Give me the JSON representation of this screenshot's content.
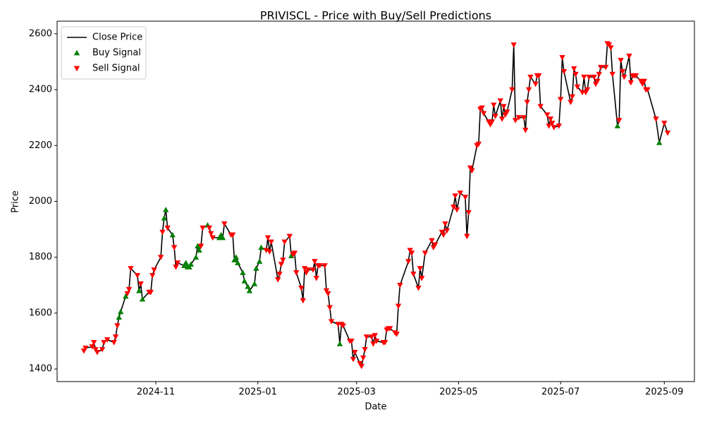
{
  "chart_data": {
    "type": "line",
    "title": "PRIVISCL - Price with Buy/Sell Predictions",
    "x_label": "Date",
    "y_label": "Price",
    "xlim": [
      "2024-09-03",
      "2025-09-19"
    ],
    "xticks": [
      {
        "value": "2024-11-01",
        "label": "2024-11"
      },
      {
        "value": "2025-01-01",
        "label": "2025-01"
      },
      {
        "value": "2025-03-01",
        "label": "2025-03"
      },
      {
        "value": "2025-05-01",
        "label": "2025-05"
      },
      {
        "value": "2025-07-01",
        "label": "2025-07"
      },
      {
        "value": "2025-09-01",
        "label": "2025-09"
      }
    ],
    "ylim": [
      1355,
      2645
    ],
    "yticks": [
      1400,
      1600,
      1800,
      2000,
      2200,
      2400,
      2600
    ],
    "grid": false,
    "legend": "upper left",
    "series": [
      {
        "name": "Close Price",
        "type": "line",
        "color": "#000000",
        "x": [
          "2024-09-19",
          "2024-09-20",
          "2024-09-24",
          "2024-09-25",
          "2024-09-26",
          "2024-09-27",
          "2024-09-30",
          "2024-10-01",
          "2024-10-03",
          "2024-10-07",
          "2024-10-08",
          "2024-10-09",
          "2024-10-10",
          "2024-10-11",
          "2024-10-14",
          "2024-10-15",
          "2024-10-16",
          "2024-10-17",
          "2024-10-21",
          "2024-10-22",
          "2024-10-23",
          "2024-10-24",
          "2024-10-28",
          "2024-10-29",
          "2024-10-30",
          "2024-10-31",
          "2024-11-04",
          "2024-11-05",
          "2024-11-06",
          "2024-11-07",
          "2024-11-08",
          "2024-11-11",
          "2024-11-12",
          "2024-11-13",
          "2024-11-14",
          "2024-11-18",
          "2024-11-19",
          "2024-11-20",
          "2024-11-21",
          "2024-11-22",
          "2024-11-25",
          "2024-11-26",
          "2024-11-27",
          "2024-11-28",
          "2024-11-29",
          "2024-12-02",
          "2024-12-03",
          "2024-12-04",
          "2024-12-05",
          "2024-12-09",
          "2024-12-10",
          "2024-12-11",
          "2024-12-12",
          "2024-12-16",
          "2024-12-17",
          "2024-12-18",
          "2024-12-19",
          "2024-12-20",
          "2024-12-23",
          "2024-12-24",
          "2024-12-26",
          "2024-12-27",
          "2024-12-30",
          "2024-12-31",
          "2025-01-02",
          "2025-01-03",
          "2025-01-06",
          "2025-01-07",
          "2025-01-08",
          "2025-01-09",
          "2025-01-13",
          "2025-01-14",
          "2025-01-15",
          "2025-01-16",
          "2025-01-17",
          "2025-01-20",
          "2025-01-21",
          "2025-01-22",
          "2025-01-23",
          "2025-01-24",
          "2025-01-27",
          "2025-01-28",
          "2025-01-29",
          "2025-01-30",
          "2025-01-31",
          "2025-02-03",
          "2025-02-04",
          "2025-02-05",
          "2025-02-06",
          "2025-02-07",
          "2025-02-10",
          "2025-02-11",
          "2025-02-12",
          "2025-02-13",
          "2025-02-14",
          "2025-02-18",
          "2025-02-19",
          "2025-02-20",
          "2025-02-21",
          "2025-02-25",
          "2025-02-26",
          "2025-02-27",
          "2025-02-28",
          "2025-03-03",
          "2025-03-04",
          "2025-03-05",
          "2025-03-06",
          "2025-03-07",
          "2025-03-10",
          "2025-03-11",
          "2025-03-12",
          "2025-03-13",
          "2025-03-17",
          "2025-03-18",
          "2025-03-19",
          "2025-03-20",
          "2025-03-21",
          "2025-03-24",
          "2025-03-25",
          "2025-03-26",
          "2025-03-27",
          "2025-04-01",
          "2025-04-02",
          "2025-04-03",
          "2025-04-04",
          "2025-04-07",
          "2025-04-08",
          "2025-04-09",
          "2025-04-11",
          "2025-04-15",
          "2025-04-16",
          "2025-04-17",
          "2025-04-21",
          "2025-04-22",
          "2025-04-23",
          "2025-04-24",
          "2025-04-28",
          "2025-04-29",
          "2025-04-30",
          "2025-05-02",
          "2025-05-05",
          "2025-05-06",
          "2025-05-07",
          "2025-05-08",
          "2025-05-09",
          "2025-05-12",
          "2025-05-13",
          "2025-05-14",
          "2025-05-15",
          "2025-05-16",
          "2025-05-19",
          "2025-05-20",
          "2025-05-21",
          "2025-05-22",
          "2025-05-23",
          "2025-05-26",
          "2025-05-27",
          "2025-05-28",
          "2025-05-29",
          "2025-05-30",
          "2025-06-02",
          "2025-06-03",
          "2025-06-04",
          "2025-06-06",
          "2025-06-09",
          "2025-06-10",
          "2025-06-11",
          "2025-06-12",
          "2025-06-13",
          "2025-06-16",
          "2025-06-17",
          "2025-06-18",
          "2025-06-19",
          "2025-06-23",
          "2025-06-24",
          "2025-06-25",
          "2025-06-26",
          "2025-06-27",
          "2025-06-30",
          "2025-07-01",
          "2025-07-02",
          "2025-07-03",
          "2025-07-07",
          "2025-07-08",
          "2025-07-09",
          "2025-07-10",
          "2025-07-11",
          "2025-07-14",
          "2025-07-15",
          "2025-07-16",
          "2025-07-17",
          "2025-07-18",
          "2025-07-21",
          "2025-07-22",
          "2025-07-23",
          "2025-07-24",
          "2025-07-25",
          "2025-07-28",
          "2025-07-29",
          "2025-07-30",
          "2025-07-31",
          "2025-08-01",
          "2025-08-04",
          "2025-08-05",
          "2025-08-06",
          "2025-08-07",
          "2025-08-08",
          "2025-08-11",
          "2025-08-12",
          "2025-08-13",
          "2025-08-14",
          "2025-08-15",
          "2025-08-18",
          "2025-08-19",
          "2025-08-20",
          "2025-08-21",
          "2025-08-22",
          "2025-08-27",
          "2025-08-29",
          "2025-09-01",
          "2025-09-03"
        ],
        "values": [
          1465,
          1475,
          1480,
          1495,
          1470,
          1460,
          1470,
          1495,
          1505,
          1495,
          1515,
          1555,
          1585,
          1605,
          1660,
          1670,
          1685,
          1760,
          1735,
          1680,
          1705,
          1650,
          1675,
          1675,
          1735,
          1755,
          1800,
          1890,
          1940,
          1970,
          1905,
          1880,
          1835,
          1765,
          1780,
          1770,
          1780,
          1765,
          1765,
          1775,
          1800,
          1840,
          1825,
          1840,
          1905,
          1915,
          1905,
          1885,
          1870,
          1870,
          1880,
          1870,
          1920,
          1880,
          1880,
          1790,
          1800,
          1780,
          1745,
          1715,
          1695,
          1680,
          1705,
          1760,
          1785,
          1835,
          1825,
          1870,
          1820,
          1855,
          1720,
          1740,
          1775,
          1790,
          1855,
          1875,
          1805,
          1810,
          1815,
          1745,
          1690,
          1645,
          1760,
          1745,
          1755,
          1755,
          1785,
          1725,
          1770,
          1770,
          1770,
          1680,
          1670,
          1620,
          1570,
          1560,
          1490,
          1560,
          1555,
          1500,
          1500,
          1435,
          1460,
          1420,
          1410,
          1440,
          1470,
          1515,
          1515,
          1490,
          1520,
          1500,
          1495,
          1495,
          1540,
          1545,
          1545,
          1530,
          1525,
          1625,
          1700,
          1785,
          1825,
          1815,
          1740,
          1690,
          1760,
          1725,
          1815,
          1860,
          1835,
          1845,
          1890,
          1880,
          1920,
          1895,
          1980,
          2020,
          1970,
          2030,
          2015,
          1875,
          1960,
          2120,
          2110,
          2200,
          2205,
          2330,
          2335,
          2315,
          2285,
          2275,
          2285,
          2345,
          2305,
          2360,
          2295,
          2340,
          2310,
          2320,
          2400,
          2560,
          2290,
          2300,
          2300,
          2255,
          2355,
          2400,
          2445,
          2420,
          2450,
          2450,
          2340,
          2310,
          2270,
          2295,
          2280,
          2265,
          2270,
          2365,
          2515,
          2465,
          2355,
          2375,
          2475,
          2455,
          2410,
          2390,
          2445,
          2390,
          2400,
          2445,
          2445,
          2420,
          2430,
          2455,
          2480,
          2480,
          2565,
          2560,
          2550,
          2455,
          2270,
          2290,
          2505,
          2465,
          2445,
          2520,
          2425,
          2450,
          2450,
          2450,
          2430,
          2420,
          2430,
          2400,
          2400,
          2295,
          2210,
          2280,
          2245
        ]
      },
      {
        "name": "Buy Signal",
        "type": "scatter",
        "marker": "^",
        "color": "#008000",
        "x": [
          "2024-10-10",
          "2024-10-11",
          "2024-10-14",
          "2024-10-22",
          "2024-10-24",
          "2024-11-06",
          "2024-11-07",
          "2024-11-11",
          "2024-11-18",
          "2024-11-19",
          "2024-11-20",
          "2024-11-21",
          "2024-11-22",
          "2024-11-25",
          "2024-11-26",
          "2024-11-27",
          "2024-12-02",
          "2024-12-09",
          "2024-12-10",
          "2024-12-11",
          "2024-12-18",
          "2024-12-19",
          "2024-12-20",
          "2024-12-23",
          "2024-12-24",
          "2024-12-26",
          "2024-12-27",
          "2024-12-30",
          "2024-12-31",
          "2025-01-02",
          "2025-01-03",
          "2025-01-21",
          "2025-02-19",
          "2025-08-04",
          "2025-08-29"
        ],
        "values": [
          1585,
          1605,
          1660,
          1680,
          1650,
          1940,
          1970,
          1880,
          1770,
          1780,
          1765,
          1765,
          1775,
          1800,
          1840,
          1825,
          1915,
          1870,
          1880,
          1870,
          1790,
          1800,
          1780,
          1745,
          1715,
          1695,
          1680,
          1705,
          1760,
          1785,
          1835,
          1805,
          1490,
          2270,
          2210
        ]
      },
      {
        "name": "Sell Signal",
        "type": "scatter",
        "marker": "v",
        "color": "#ff0000",
        "x": [
          "2024-09-19",
          "2024-09-20",
          "2024-09-24",
          "2024-09-25",
          "2024-09-26",
          "2024-09-27",
          "2024-09-30",
          "2024-10-01",
          "2024-10-03",
          "2024-10-07",
          "2024-10-08",
          "2024-10-09",
          "2024-10-15",
          "2024-10-16",
          "2024-10-17",
          "2024-10-21",
          "2024-10-23",
          "2024-10-28",
          "2024-10-29",
          "2024-10-30",
          "2024-10-31",
          "2024-11-04",
          "2024-11-05",
          "2024-11-08",
          "2024-11-12",
          "2024-11-13",
          "2024-11-14",
          "2024-11-28",
          "2024-11-29",
          "2024-12-03",
          "2024-12-04",
          "2024-12-05",
          "2024-12-12",
          "2024-12-16",
          "2024-12-17",
          "2025-01-06",
          "2025-01-07",
          "2025-01-08",
          "2025-01-09",
          "2025-01-13",
          "2025-01-14",
          "2025-01-15",
          "2025-01-16",
          "2025-01-17",
          "2025-01-20",
          "2025-01-22",
          "2025-01-23",
          "2025-01-24",
          "2025-01-27",
          "2025-01-28",
          "2025-01-29",
          "2025-01-30",
          "2025-01-31",
          "2025-02-03",
          "2025-02-04",
          "2025-02-05",
          "2025-02-06",
          "2025-02-07",
          "2025-02-10",
          "2025-02-11",
          "2025-02-12",
          "2025-02-13",
          "2025-02-14",
          "2025-02-18",
          "2025-02-20",
          "2025-02-21",
          "2025-02-25",
          "2025-02-26",
          "2025-02-27",
          "2025-02-28",
          "2025-03-03",
          "2025-03-04",
          "2025-03-05",
          "2025-03-06",
          "2025-03-07",
          "2025-03-10",
          "2025-03-11",
          "2025-03-12",
          "2025-03-13",
          "2025-03-17",
          "2025-03-18",
          "2025-03-19",
          "2025-03-20",
          "2025-03-21",
          "2025-03-24",
          "2025-03-25",
          "2025-03-26",
          "2025-03-27",
          "2025-04-01",
          "2025-04-02",
          "2025-04-03",
          "2025-04-04",
          "2025-04-07",
          "2025-04-08",
          "2025-04-09",
          "2025-04-11",
          "2025-04-15",
          "2025-04-16",
          "2025-04-17",
          "2025-04-21",
          "2025-04-22",
          "2025-04-23",
          "2025-04-24",
          "2025-04-28",
          "2025-04-29",
          "2025-04-30",
          "2025-05-02",
          "2025-05-05",
          "2025-05-06",
          "2025-05-07",
          "2025-05-08",
          "2025-05-09",
          "2025-05-12",
          "2025-05-13",
          "2025-05-14",
          "2025-05-15",
          "2025-05-16",
          "2025-05-19",
          "2025-05-20",
          "2025-05-21",
          "2025-05-22",
          "2025-05-23",
          "2025-05-26",
          "2025-05-27",
          "2025-05-28",
          "2025-05-29",
          "2025-05-30",
          "2025-06-02",
          "2025-06-03",
          "2025-06-04",
          "2025-06-06",
          "2025-06-09",
          "2025-06-10",
          "2025-06-11",
          "2025-06-12",
          "2025-06-13",
          "2025-06-16",
          "2025-06-17",
          "2025-06-18",
          "2025-06-19",
          "2025-06-23",
          "2025-06-24",
          "2025-06-25",
          "2025-06-26",
          "2025-06-27",
          "2025-06-30",
          "2025-07-01",
          "2025-07-02",
          "2025-07-03",
          "2025-07-07",
          "2025-07-08",
          "2025-07-09",
          "2025-07-10",
          "2025-07-11",
          "2025-07-14",
          "2025-07-15",
          "2025-07-16",
          "2025-07-17",
          "2025-07-18",
          "2025-07-21",
          "2025-07-22",
          "2025-07-23",
          "2025-07-24",
          "2025-07-25",
          "2025-07-28",
          "2025-07-29",
          "2025-07-30",
          "2025-07-31",
          "2025-08-01",
          "2025-08-05",
          "2025-08-06",
          "2025-08-07",
          "2025-08-08",
          "2025-08-11",
          "2025-08-12",
          "2025-08-13",
          "2025-08-14",
          "2025-08-15",
          "2025-08-18",
          "2025-08-19",
          "2025-08-20",
          "2025-08-21",
          "2025-08-22",
          "2025-08-27",
          "2025-09-01",
          "2025-09-03"
        ],
        "values": [
          1465,
          1475,
          1480,
          1495,
          1470,
          1460,
          1470,
          1495,
          1505,
          1495,
          1515,
          1555,
          1670,
          1685,
          1760,
          1735,
          1705,
          1675,
          1675,
          1735,
          1755,
          1800,
          1890,
          1905,
          1835,
          1765,
          1780,
          1840,
          1905,
          1905,
          1885,
          1870,
          1920,
          1880,
          1880,
          1825,
          1870,
          1820,
          1855,
          1720,
          1740,
          1775,
          1790,
          1855,
          1875,
          1810,
          1815,
          1745,
          1690,
          1645,
          1760,
          1745,
          1755,
          1755,
          1785,
          1725,
          1770,
          1770,
          1770,
          1680,
          1670,
          1620,
          1570,
          1560,
          1560,
          1555,
          1500,
          1500,
          1435,
          1460,
          1420,
          1410,
          1440,
          1470,
          1515,
          1515,
          1490,
          1520,
          1500,
          1495,
          1495,
          1540,
          1545,
          1545,
          1530,
          1525,
          1625,
          1700,
          1785,
          1825,
          1815,
          1740,
          1690,
          1760,
          1725,
          1815,
          1860,
          1835,
          1845,
          1890,
          1880,
          1920,
          1895,
          1980,
          2020,
          1970,
          2030,
          2015,
          1875,
          1960,
          2120,
          2110,
          2200,
          2205,
          2330,
          2335,
          2315,
          2285,
          2275,
          2285,
          2345,
          2305,
          2360,
          2295,
          2340,
          2310,
          2320,
          2400,
          2560,
          2290,
          2300,
          2300,
          2255,
          2355,
          2400,
          2445,
          2420,
          2450,
          2450,
          2340,
          2310,
          2270,
          2295,
          2280,
          2265,
          2270,
          2365,
          2515,
          2465,
          2355,
          2375,
          2475,
          2455,
          2410,
          2390,
          2445,
          2390,
          2400,
          2445,
          2445,
          2420,
          2430,
          2455,
          2480,
          2480,
          2565,
          2560,
          2550,
          2455,
          2290,
          2505,
          2465,
          2445,
          2520,
          2425,
          2450,
          2450,
          2450,
          2430,
          2420,
          2430,
          2400,
          2400,
          2295,
          2280,
          2245
        ]
      }
    ]
  }
}
